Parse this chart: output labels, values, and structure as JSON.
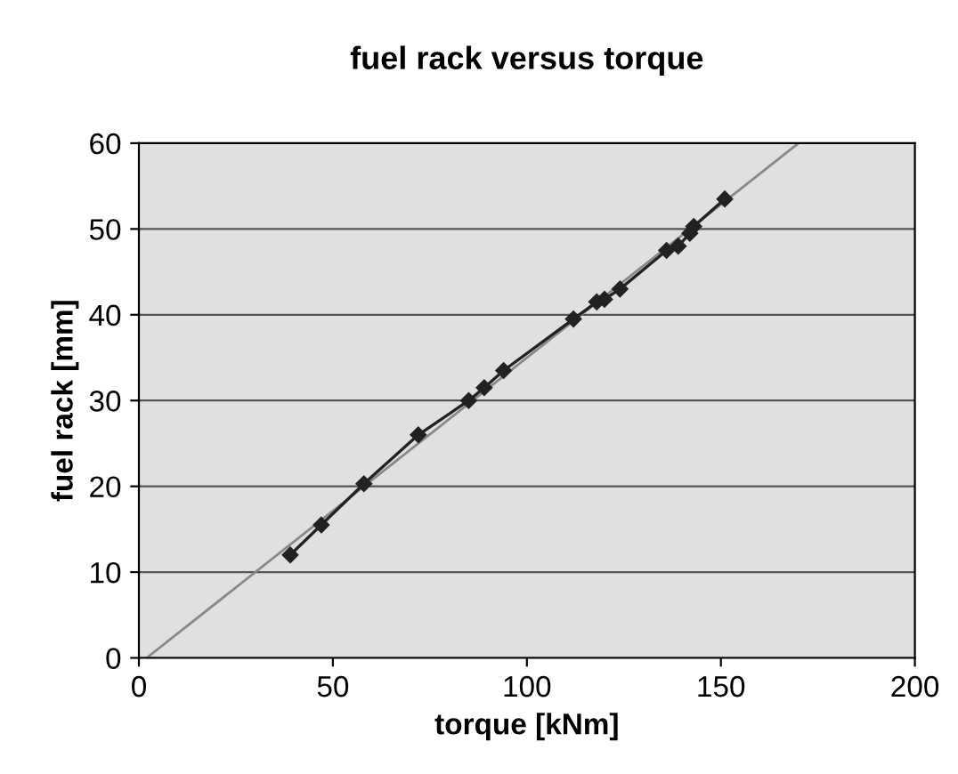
{
  "chart_data": {
    "type": "line",
    "title": "fuel rack versus torque",
    "xlabel": "torque [kNm]",
    "ylabel": "fuel rack [mm]",
    "xlim": [
      0,
      200
    ],
    "xticks": [
      0,
      50,
      100,
      150,
      200
    ],
    "ylim": [
      0,
      60
    ],
    "yticks": [
      0,
      10,
      20,
      30,
      40,
      50,
      60
    ],
    "grid": "y",
    "legend": false,
    "series": [
      {
        "color": "#222222",
        "marker": "diamond",
        "x": [
          39,
          47,
          58,
          72,
          85,
          89,
          94,
          112,
          118,
          120,
          124,
          136,
          139,
          142,
          143,
          151
        ],
        "values": [
          12,
          15.5,
          20.3,
          26,
          30,
          31.5,
          33.5,
          39.5,
          41.5,
          41.8,
          43,
          47.5,
          48,
          49.5,
          50.3,
          53.5
        ]
      },
      {
        "color": "#888888",
        "marker": "none",
        "x": [
          2,
          170
        ],
        "values": [
          0,
          60
        ]
      }
    ]
  }
}
